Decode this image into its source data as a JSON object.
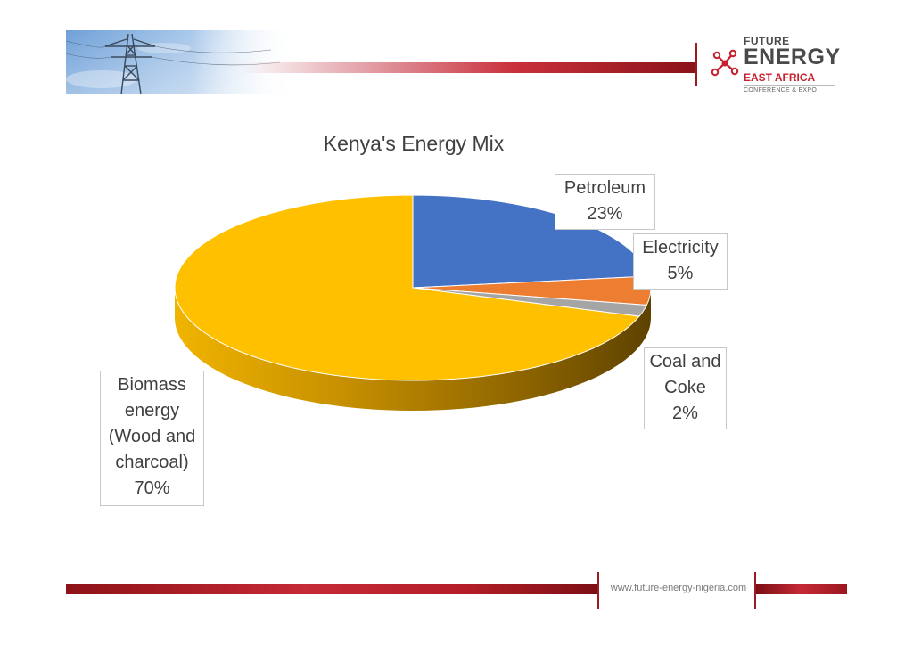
{
  "brand": {
    "future": "FUTURE",
    "energy": "ENERGY",
    "region": "EAST AFRICA",
    "tagline": "CONFERENCE & EXPO",
    "website": "www.future-energy-nigeria.com"
  },
  "colors": {
    "brand_red": "#c8202e",
    "petroleum": "#4472c4",
    "electricity": "#ed7d31",
    "coal_and_coke": "#a5a5a5",
    "biomass": "#ffc000"
  },
  "chart_data": {
    "type": "pie",
    "title": "Kenya's Energy Mix",
    "three_d": true,
    "categories": [
      "Petroleum",
      "Electricity",
      "Coal and Coke",
      "Biomass energy (Wood and charcoal)"
    ],
    "values": [
      23,
      5,
      2,
      70
    ],
    "unit": "%",
    "data_labels": [
      {
        "lines": [
          "Petroleum",
          "23%"
        ]
      },
      {
        "lines": [
          "Electricity",
          "5%"
        ]
      },
      {
        "lines": [
          "Coal and",
          "Coke",
          "2%"
        ]
      },
      {
        "lines": [
          "Biomass",
          "energy",
          "(Wood and",
          "charcoal)",
          "70%"
        ]
      }
    ]
  }
}
